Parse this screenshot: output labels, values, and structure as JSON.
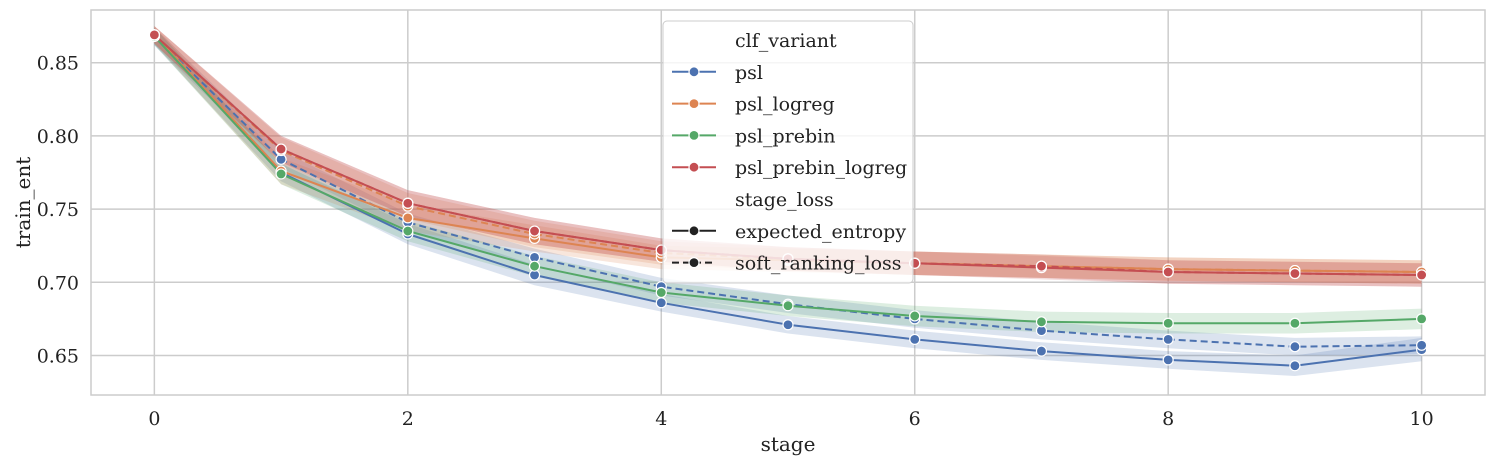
{
  "chart_data": {
    "type": "line",
    "xlabel": "stage",
    "ylabel": "train_ent",
    "xlim": [
      -0.5,
      10.5
    ],
    "ylim": [
      0.623,
      0.886
    ],
    "x_ticks": [
      0,
      2,
      4,
      6,
      8,
      10
    ],
    "x_tick_labels": [
      "0",
      "2",
      "4",
      "6",
      "8",
      "10"
    ],
    "y_ticks": [
      0.65,
      0.7,
      0.75,
      0.8,
      0.85
    ],
    "y_tick_labels": [
      "0.65",
      "0.70",
      "0.75",
      "0.80",
      "0.85"
    ],
    "grid": true,
    "legend": {
      "placement": "top-center",
      "hue_title": "clf_variant",
      "style_title": "stage_loss",
      "hue_entries": [
        {
          "label": "psl",
          "color": "#4c72b0"
        },
        {
          "label": "psl_logreg",
          "color": "#dd8452"
        },
        {
          "label": "psl_prebin",
          "color": "#55a868"
        },
        {
          "label": "psl_prebin_logreg",
          "color": "#c44e52"
        }
      ],
      "style_entries": [
        {
          "label": "expected_entropy",
          "dash": "solid"
        },
        {
          "label": "soft_ranking_loss",
          "dash": "dashed"
        }
      ]
    },
    "series": [
      {
        "name": "psl",
        "hue": "psl",
        "style": "expected_entropy",
        "color": "#4c72b0",
        "x": [
          0,
          1,
          2,
          3,
          4,
          5,
          6,
          7,
          8,
          9,
          10
        ],
        "y": [
          0.868,
          0.775,
          0.733,
          0.705,
          0.686,
          0.671,
          0.661,
          0.653,
          0.647,
          0.643,
          0.654
        ],
        "ci": [
          0.006,
          0.006,
          0.007,
          0.007,
          0.006,
          0.006,
          0.006,
          0.006,
          0.006,
          0.007,
          0.008
        ]
      },
      {
        "name": "psl",
        "hue": "psl",
        "style": "soft_ranking_loss",
        "color": "#4c72b0",
        "x": [
          0,
          1,
          2,
          3,
          4,
          5,
          6,
          7,
          8,
          9,
          10
        ],
        "y": [
          0.868,
          0.784,
          0.741,
          0.717,
          0.697,
          0.685,
          0.675,
          0.667,
          0.661,
          0.656,
          0.657
        ],
        "ci": [
          0.006,
          0.006,
          0.006,
          0.006,
          0.006,
          0.006,
          0.006,
          0.006,
          0.006,
          0.006,
          0.006
        ]
      },
      {
        "name": "psl_logreg",
        "hue": "psl_logreg",
        "style": "expected_entropy",
        "color": "#dd8452",
        "x": [
          0,
          1,
          2,
          3,
          4,
          5,
          6,
          7,
          8,
          9,
          10
        ],
        "y": [
          0.869,
          0.776,
          0.744,
          0.73,
          0.717,
          0.715,
          0.713,
          0.711,
          0.709,
          0.708,
          0.707
        ],
        "ci": [
          0.006,
          0.009,
          0.009,
          0.009,
          0.008,
          0.008,
          0.008,
          0.008,
          0.008,
          0.008,
          0.008
        ]
      },
      {
        "name": "psl_logreg",
        "hue": "psl_logreg",
        "style": "soft_ranking_loss",
        "color": "#dd8452",
        "x": [
          0,
          1,
          2,
          3,
          4,
          5,
          6,
          7,
          8,
          9,
          10
        ],
        "y": [
          0.869,
          0.79,
          0.752,
          0.733,
          0.72,
          0.716,
          0.713,
          0.711,
          0.709,
          0.708,
          0.707
        ],
        "ci": [
          0.006,
          0.009,
          0.009,
          0.009,
          0.008,
          0.008,
          0.008,
          0.008,
          0.008,
          0.008,
          0.008
        ]
      },
      {
        "name": "psl_prebin",
        "hue": "psl_prebin",
        "style": "expected_entropy",
        "color": "#55a868",
        "x": [
          0,
          1,
          2,
          3,
          4,
          5,
          6,
          7,
          8,
          9,
          10
        ],
        "y": [
          0.868,
          0.774,
          0.735,
          0.711,
          0.693,
          0.684,
          0.677,
          0.673,
          0.672,
          0.672,
          0.675
        ],
        "ci": [
          0.006,
          0.007,
          0.007,
          0.007,
          0.007,
          0.007,
          0.007,
          0.007,
          0.007,
          0.007,
          0.007
        ]
      },
      {
        "name": "psl_prebin_logreg",
        "hue": "psl_prebin_logreg",
        "style": "expected_entropy",
        "color": "#c44e52",
        "x": [
          0,
          1,
          2,
          3,
          4,
          5,
          6,
          7,
          8,
          9,
          10
        ],
        "y": [
          0.869,
          0.791,
          0.754,
          0.735,
          0.722,
          0.716,
          0.713,
          0.71,
          0.707,
          0.706,
          0.705
        ],
        "ci": [
          0.006,
          0.009,
          0.009,
          0.009,
          0.008,
          0.008,
          0.008,
          0.008,
          0.008,
          0.008,
          0.008
        ]
      },
      {
        "name": "psl_prebin_logreg",
        "hue": "psl_prebin_logreg",
        "style": "soft_ranking_loss",
        "color": "#c44e52",
        "x": [
          0,
          1,
          2,
          3,
          4,
          5,
          6,
          7,
          8,
          9,
          10
        ],
        "y": [
          0.869,
          0.791,
          0.754,
          0.735,
          0.722,
          0.716,
          0.713,
          0.711,
          0.707,
          0.706,
          0.705
        ],
        "ci": [
          0.006,
          0.009,
          0.009,
          0.009,
          0.008,
          0.008,
          0.008,
          0.008,
          0.008,
          0.008,
          0.008
        ]
      }
    ]
  }
}
